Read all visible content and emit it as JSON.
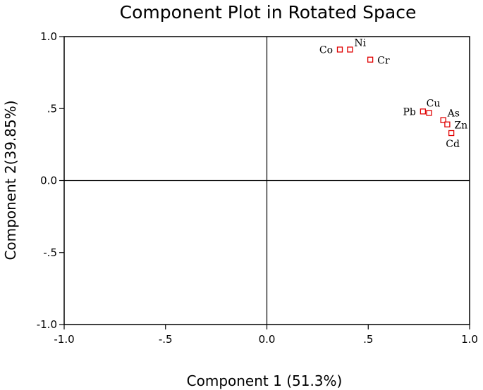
{
  "chart_data": {
    "type": "scatter",
    "title": "Component Plot in Rotated Space",
    "xlabel": "Component 1 (51.3%)",
    "ylabel": "Component 2(39.85%)",
    "xlim": [
      -1.0,
      1.0
    ],
    "ylim": [
      -1.0,
      1.0
    ],
    "xticks": [
      {
        "value": -1.0,
        "label": "-1.0"
      },
      {
        "value": -0.5,
        "label": "-.5"
      },
      {
        "value": 0.0,
        "label": "0.0"
      },
      {
        "value": 0.5,
        "label": ".5"
      },
      {
        "value": 1.0,
        "label": "1.0"
      }
    ],
    "yticks": [
      {
        "value": 1.0,
        "label": "1.0"
      },
      {
        "value": 0.5,
        "label": ".5"
      },
      {
        "value": 0.0,
        "label": "0.0"
      },
      {
        "value": -0.5,
        "label": "-.5"
      },
      {
        "value": -1.0,
        "label": "-1.0"
      }
    ],
    "grid": false,
    "reference_lines": {
      "x": 0,
      "y": 0
    },
    "marker": {
      "shape": "open-square",
      "color": "#e00000"
    },
    "points": [
      {
        "label": "Co",
        "x": 0.36,
        "y": 0.91,
        "label_side": "left"
      },
      {
        "label": "Ni",
        "x": 0.41,
        "y": 0.91,
        "label_side": "above-right"
      },
      {
        "label": "Cr",
        "x": 0.51,
        "y": 0.84,
        "label_side": "right"
      },
      {
        "label": "Pb",
        "x": 0.77,
        "y": 0.48,
        "label_side": "left"
      },
      {
        "label": "Cu",
        "x": 0.8,
        "y": 0.47,
        "label_side": "above"
      },
      {
        "label": "As",
        "x": 0.87,
        "y": 0.42,
        "label_side": "above-right"
      },
      {
        "label": "Zn",
        "x": 0.89,
        "y": 0.39,
        "label_side": "right"
      },
      {
        "label": "Cd",
        "x": 0.91,
        "y": 0.33,
        "label_side": "below"
      }
    ]
  }
}
